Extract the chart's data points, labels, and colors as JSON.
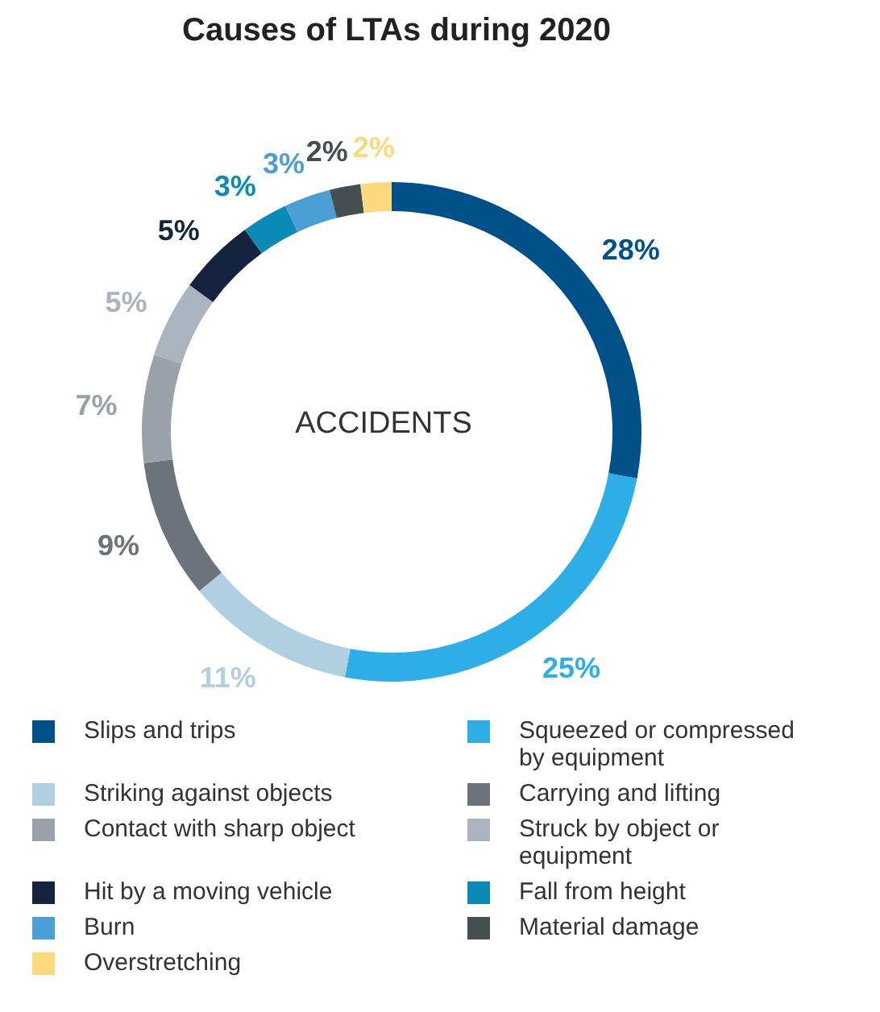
{
  "chart_data": {
    "type": "donut",
    "title": "Causes of LTAs during 2020",
    "categories": [
      "Slips and trips",
      "Squeezed or compressed by equipment",
      "Striking against objects",
      "Carrying and lifting",
      "Contact with sharp object",
      "Struck by object or equipment",
      "Hit by a moving vehicle",
      "Fall from height",
      "Burn",
      "Material damage",
      "Overstretching"
    ],
    "values": [
      28,
      25,
      11,
      9,
      7,
      5,
      5,
      3,
      3,
      2,
      2
    ],
    "value_labels": [
      "28%",
      "25%",
      "11%",
      "9%",
      "7%",
      "5%",
      "5%",
      "3%",
      "3%",
      "2%",
      "2%"
    ],
    "colors": [
      "#00508a",
      "#2eaee6",
      "#b0cfe0",
      "#6b747b",
      "#9aa1a8",
      "#aab4bf",
      "#14243f",
      "#0a8bb5",
      "#4a9fd6",
      "#454f52",
      "#fcd97a"
    ],
    "annotations": [
      "ACCIDENTS"
    ],
    "legend": "bottom"
  }
}
